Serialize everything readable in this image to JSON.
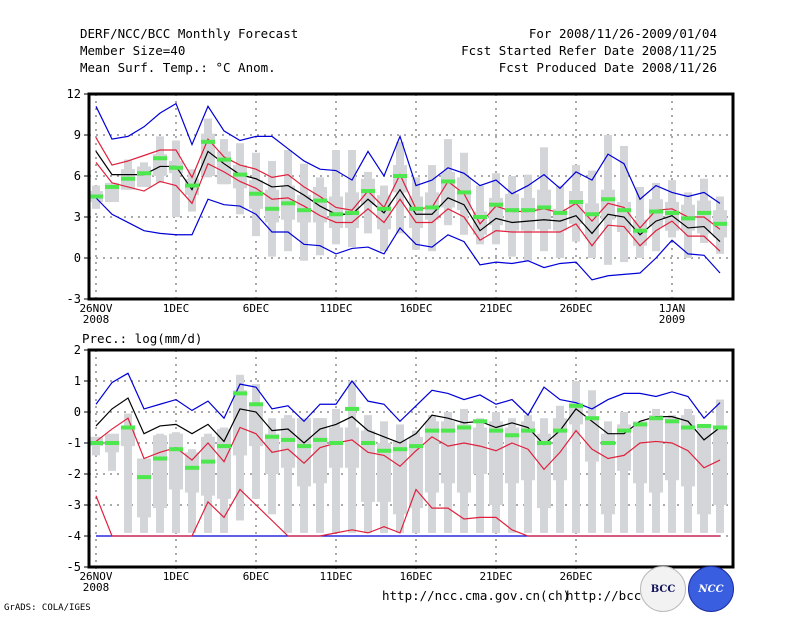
{
  "header": {
    "left": [
      "DERF/NCC/BCC Monthly Forecast",
      "Member Size=40",
      "Mean Surf. Temp.: °C Anom."
    ],
    "right": [
      "For 2008/11/26-2009/01/04",
      "Fcst Started Refer Date 2008/11/25",
      "Fcst Produced Date 2008/11/26"
    ]
  },
  "footer": {
    "grads": "GrADS: COLA/IGES",
    "url1": "http://ncc.cma.gov.cn(ch)",
    "url2": "http://bcc.",
    "logo_bcc": "BCC",
    "logo_ncc": "NCC"
  },
  "colors": {
    "box": "#d4d5d9",
    "median": "#4de84d",
    "mean": "#000000",
    "std": "#e0203c",
    "minmax": "#0000d8",
    "grid": "#555555"
  },
  "chart_data": [
    {
      "type": "box-spread",
      "title": "Mean Surf. Temp.: °C Anom.",
      "ylim": [
        -3,
        12
      ],
      "yticks": [
        -3,
        0,
        3,
        6,
        9,
        12
      ],
      "xticks": [
        {
          "day": 0,
          "label": "26NOV",
          "sub": "2008"
        },
        {
          "day": 5,
          "label": "1DEC"
        },
        {
          "day": 10,
          "label": "6DEC"
        },
        {
          "day": 15,
          "label": "11DEC"
        },
        {
          "day": 20,
          "label": "16DEC"
        },
        {
          "day": 25,
          "label": "21DEC"
        },
        {
          "day": 30,
          "label": "26DEC"
        },
        {
          "day": 36,
          "label": "1JAN",
          "sub": "2009"
        }
      ],
      "days": 40,
      "median": [
        4.5,
        5.2,
        5.8,
        6.2,
        7.3,
        6.6,
        5.3,
        8.5,
        7.2,
        6.1,
        4.7,
        3.6,
        4.0,
        3.5,
        4.2,
        3.2,
        3.3,
        4.9,
        3.6,
        6.0,
        3.6,
        3.7,
        5.6,
        4.8,
        3.0,
        3.9,
        3.5,
        3.5,
        3.7,
        3.3,
        4.1,
        3.2,
        4.3,
        3.5,
        2.0,
        3.4,
        3.3,
        2.9,
        3.3,
        2.5
      ],
      "q_low": [
        4.1,
        4.1,
        5.0,
        5.2,
        6.0,
        6.2,
        4.6,
        6.0,
        5.4,
        5.1,
        3.6,
        2.6,
        2.8,
        2.6,
        2.6,
        2.2,
        2.2,
        3.9,
        2.1,
        4.8,
        2.2,
        2.8,
        3.7,
        3.5,
        1.7,
        2.4,
        2.0,
        2.0,
        2.1,
        2.0,
        2.5,
        1.4,
        2.8,
        1.9,
        0.9,
        2.3,
        2.0,
        2.0,
        1.8,
        1.5
      ],
      "q_high": [
        4.9,
        5.5,
        6.5,
        6.7,
        7.6,
        7.1,
        5.8,
        9.1,
        7.8,
        6.8,
        5.7,
        5.0,
        5.3,
        4.6,
        5.2,
        4.5,
        4.8,
        5.8,
        4.6,
        6.8,
        4.5,
        4.8,
        6.3,
        5.9,
        3.4,
        4.4,
        4.7,
        4.4,
        5.0,
        3.6,
        4.9,
        4.0,
        5.0,
        4.1,
        2.8,
        4.3,
        4.1,
        3.9,
        4.2,
        3.5
      ],
      "whisk_low": [
        3.6,
        4.1,
        5.0,
        5.2,
        5.5,
        3.0,
        3.4,
        5.9,
        5.4,
        3.2,
        1.6,
        0.1,
        0.5,
        -0.2,
        0.2,
        1.0,
        0.8,
        1.8,
        0.5,
        1.8,
        0.6,
        0.5,
        2.4,
        1.7,
        1.0,
        1.0,
        0.1,
        -0.2,
        0.5,
        0.0,
        1.2,
        0.0,
        -0.5,
        -0.3,
        0.0,
        0.5,
        1.5,
        0.0,
        1.1,
        0.3
      ],
      "whisk_high": [
        5.3,
        5.5,
        7.2,
        7.0,
        8.9,
        8.6,
        6.5,
        10.2,
        8.7,
        8.4,
        7.7,
        7.1,
        7.9,
        6.9,
        5.9,
        7.9,
        7.9,
        6.3,
        5.3,
        8.5,
        5.9,
        6.8,
        8.7,
        7.7,
        5.3,
        6.2,
        6.0,
        6.1,
        8.1,
        5.3,
        6.8,
        6.4,
        9.0,
        8.2,
        5.2,
        5.5,
        5.7,
        4.8,
        5.8,
        4.5
      ],
      "mean": [
        7.8,
        6.1,
        6.1,
        6.1,
        6.7,
        6.7,
        5.0,
        7.8,
        6.9,
        6.1,
        5.8,
        5.2,
        5.3,
        4.6,
        3.8,
        3.2,
        3.2,
        4.3,
        3.3,
        5.0,
        3.2,
        3.2,
        4.4,
        3.9,
        2.0,
        2.9,
        2.6,
        2.7,
        2.8,
        2.7,
        3.1,
        1.8,
        3.2,
        3.0,
        1.7,
        2.7,
        3.1,
        2.2,
        2.3,
        1.2
      ],
      "std_high": [
        8.8,
        6.8,
        7.1,
        7.5,
        7.9,
        7.9,
        5.9,
        8.7,
        7.4,
        6.8,
        6.5,
        5.9,
        6.1,
        5.2,
        4.5,
        3.7,
        3.5,
        4.9,
        3.7,
        6.1,
        3.6,
        3.7,
        5.6,
        4.7,
        2.5,
        3.8,
        3.4,
        3.4,
        3.6,
        3.3,
        4.0,
        2.7,
        4.0,
        3.7,
        2.2,
        3.5,
        3.6,
        3.0,
        3.0,
        2.1
      ],
      "std_low": [
        7.0,
        5.5,
        5.2,
        4.9,
        5.6,
        5.3,
        4.0,
        6.9,
        6.3,
        5.6,
        5.1,
        4.3,
        4.4,
        3.8,
        3.1,
        2.6,
        2.6,
        3.6,
        2.6,
        4.3,
        2.6,
        2.6,
        3.6,
        3.0,
        1.3,
        2.0,
        1.9,
        1.9,
        1.9,
        1.9,
        2.5,
        0.9,
        2.4,
        2.3,
        0.9,
        2.0,
        2.7,
        1.6,
        1.6,
        0.5
      ],
      "min": [
        4.4,
        3.2,
        2.6,
        2.0,
        1.8,
        1.7,
        1.7,
        4.3,
        3.9,
        3.8,
        3.2,
        1.9,
        1.9,
        1.0,
        0.9,
        0.3,
        0.7,
        0.8,
        0.3,
        2.2,
        1.0,
        0.8,
        1.7,
        1.2,
        -0.5,
        -0.3,
        -0.4,
        -0.2,
        -0.7,
        -0.4,
        -0.3,
        -1.6,
        -1.3,
        -1.2,
        -1.1,
        0.0,
        1.3,
        0.3,
        0.2,
        -1.1
      ],
      "max": [
        11.1,
        8.7,
        8.9,
        9.6,
        10.6,
        11.3,
        8.3,
        11.1,
        9.3,
        8.6,
        8.9,
        8.9,
        8.0,
        7.1,
        6.5,
        6.4,
        5.7,
        7.8,
        6.0,
        8.9,
        5.3,
        5.7,
        6.6,
        6.2,
        5.3,
        5.7,
        4.7,
        5.3,
        6.1,
        5.1,
        6.3,
        5.7,
        7.6,
        6.9,
        4.3,
        5.3,
        4.8,
        4.5,
        4.8,
        4.0
      ]
    },
    {
      "type": "box-spread",
      "title": "Prec.: log(mm/d)",
      "ylim": [
        -5,
        2
      ],
      "yticks": [
        -5,
        -4,
        -3,
        -2,
        -1,
        0,
        1,
        2
      ],
      "xticks": [
        {
          "day": 0,
          "label": "26NOV",
          "sub": "2008"
        },
        {
          "day": 5,
          "label": "1DEC"
        },
        {
          "day": 10,
          "label": "6DEC"
        },
        {
          "day": 15,
          "label": "11DEC"
        },
        {
          "day": 20,
          "label": "16DEC"
        },
        {
          "day": 25,
          "label": "21DEC"
        },
        {
          "day": 30,
          "label": "26DEC"
        }
      ],
      "days": 40,
      "median": [
        -1.0,
        -1.0,
        -0.5,
        -2.1,
        -1.5,
        -1.2,
        -1.8,
        -1.6,
        -1.1,
        0.6,
        0.25,
        -0.8,
        -0.9,
        -1.1,
        -0.9,
        -1.0,
        0.1,
        -1.0,
        -1.25,
        -1.2,
        -1.1,
        -0.6,
        -0.6,
        -0.5,
        -0.3,
        -0.6,
        -0.75,
        -0.6,
        -1.0,
        -0.6,
        0.2,
        -0.2,
        -1.0,
        -0.6,
        -0.4,
        -0.2,
        -0.3,
        -0.5,
        -0.45,
        -0.5
      ],
      "q_low": [
        -1.1,
        -1.3,
        -1.1,
        -3.4,
        -3.1,
        -2.5,
        -2.6,
        -2.7,
        -2.8,
        -1.4,
        -1.1,
        -2.0,
        -1.8,
        -2.4,
        -2.3,
        -1.8,
        -1.8,
        -2.9,
        -2.9,
        -3.3,
        -3.1,
        -2.6,
        -2.3,
        -2.6,
        -2.0,
        -3.0,
        -2.3,
        -2.2,
        -3.1,
        -2.2,
        -0.4,
        -1.6,
        -3.3,
        -1.9,
        -2.3,
        -2.6,
        -2.2,
        -2.4,
        -3.3,
        -3.0
      ],
      "q_high": [
        -0.8,
        -0.7,
        -0.5,
        -1.5,
        -0.75,
        -0.7,
        -1.3,
        -0.8,
        -0.55,
        0.7,
        0.3,
        -0.7,
        -0.2,
        -0.2,
        -0.2,
        -0.5,
        -0.5,
        -0.6,
        -1.0,
        -0.9,
        -0.8,
        -0.3,
        -0.3,
        -0.4,
        -0.5,
        -0.3,
        -0.5,
        -0.3,
        -0.7,
        -0.2,
        0.3,
        -0.2,
        -0.7,
        -0.4,
        -0.3,
        -0.1,
        -0.2,
        -0.1,
        -0.5,
        -0.5
      ],
      "whisk_low": [
        -1.4,
        -1.9,
        -3.9,
        -3.9,
        -3.9,
        -3.9,
        -3.9,
        -3.9,
        -3.9,
        -3.5,
        -2.8,
        -3.3,
        -3.9,
        -3.9,
        -3.9,
        -3.9,
        -3.9,
        -3.9,
        -3.9,
        -3.9,
        -3.9,
        -3.9,
        -3.9,
        -3.9,
        -3.9,
        -3.9,
        -3.9,
        -3.9,
        -3.9,
        -3.9,
        -3.9,
        -3.9,
        -3.9,
        -3.9,
        -3.9,
        -3.9,
        -3.9,
        -3.9,
        -3.9,
        -3.9
      ],
      "whisk_high": [
        -0.8,
        -0.8,
        -0.05,
        -1.5,
        -0.7,
        -0.65,
        -1.2,
        -0.7,
        -0.5,
        1.2,
        0.9,
        -0.2,
        -0.1,
        -0.4,
        -0.2,
        0.1,
        1.0,
        -0.1,
        -0.3,
        -0.4,
        -0.6,
        -0.1,
        0.0,
        0.1,
        -0.2,
        0.0,
        -0.2,
        -0.1,
        -0.2,
        0.2,
        1.0,
        0.7,
        -0.3,
        0.0,
        -0.4,
        0.1,
        -0.1,
        0.1,
        -0.5,
        0.4
      ],
      "mean": [
        -0.45,
        0.1,
        0.45,
        -0.7,
        -0.45,
        -0.4,
        -0.7,
        -0.4,
        -0.95,
        0.1,
        0.0,
        -0.6,
        -0.55,
        -1.0,
        -0.55,
        -0.4,
        -0.15,
        -0.6,
        -0.8,
        -1.0,
        -0.7,
        -0.1,
        -0.2,
        -0.35,
        -0.3,
        -0.5,
        -0.35,
        -0.5,
        -1.05,
        -0.6,
        0.1,
        -0.3,
        -0.7,
        -0.7,
        -0.3,
        -0.15,
        -0.15,
        -0.3,
        -0.9,
        -0.5
      ],
      "std_high": [
        -0.95,
        -0.55,
        -0.2,
        -1.5,
        -1.3,
        -1.15,
        -1.55,
        -1.0,
        -1.6,
        -0.5,
        -0.7,
        -1.3,
        -1.2,
        -1.65,
        -1.15,
        -1.0,
        -0.9,
        -1.3,
        -1.4,
        -1.75,
        -1.25,
        -0.8,
        -1.1,
        -1.0,
        -1.1,
        -1.25,
        -1.0,
        -1.2,
        -1.85,
        -1.3,
        -0.6,
        -1.2,
        -1.5,
        -1.4,
        -1.0,
        -0.95,
        -1.0,
        -1.25,
        -1.8,
        -1.55
      ],
      "std_low": [
        -2.7,
        -4.0,
        -4.0,
        -4.0,
        -4.0,
        -4.0,
        -4.0,
        -2.9,
        -3.4,
        -2.5,
        -3.0,
        -3.5,
        -4.0,
        -4.0,
        -4.0,
        -3.9,
        -3.8,
        -3.9,
        -3.7,
        -3.9,
        -2.5,
        -3.1,
        -3.1,
        -3.45,
        -3.4,
        -3.4,
        -3.8,
        -4.0,
        -4.0,
        -4.0,
        -4.0,
        -4.0,
        -4.0,
        -4.0,
        -4.0,
        -4.0,
        -4.0,
        -4.0,
        -4.0,
        -4.0
      ],
      "min": [
        -4.0,
        -4.0,
        -4.0,
        -4.0,
        -4.0,
        -4.0,
        -4.0,
        -4.0,
        -4.0,
        -4.0,
        -4.0,
        -4.0,
        -4.0,
        -4.0,
        -4.0,
        -4.0,
        -4.0,
        -4.0,
        -4.0,
        -4.0,
        -4.0,
        -4.0,
        -4.0,
        -4.0,
        -4.0,
        -4.0,
        -4.0,
        -4.0,
        -4.0,
        -4.0,
        -4.0,
        -4.0,
        -4.0,
        -4.0,
        -4.0,
        -4.0,
        -4.0,
        -4.0,
        -4.0,
        -4.0
      ],
      "max": [
        0.25,
        0.95,
        1.25,
        0.1,
        0.25,
        0.4,
        0.05,
        0.35,
        -0.2,
        0.9,
        0.8,
        0.1,
        0.2,
        -0.3,
        0.25,
        0.25,
        1.0,
        0.35,
        0.25,
        -0.3,
        0.2,
        0.7,
        0.6,
        0.4,
        0.55,
        0.25,
        0.4,
        -0.1,
        0.8,
        0.4,
        0.3,
        0.1,
        0.4,
        0.6,
        0.6,
        0.5,
        0.65,
        0.5,
        -0.2,
        0.3
      ]
    }
  ]
}
